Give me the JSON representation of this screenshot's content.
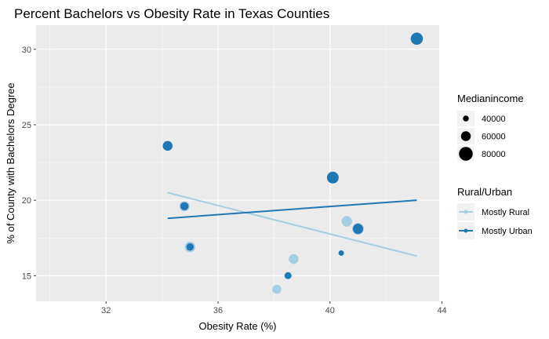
{
  "chart_data": {
    "type": "scatter",
    "title": "Percent Bachelors vs Obesity Rate in Texas Counties",
    "xlabel": "Obesity Rate (%)",
    "ylabel": "% of County with Bachelors Degree",
    "xlim": [
      29.5,
      43.9
    ],
    "ylim": [
      13.3,
      31.6
    ],
    "x_ticks": [
      32,
      36,
      40,
      44
    ],
    "y_ticks": [
      15,
      20,
      25,
      30
    ],
    "grid": true,
    "background": "#ebebeb",
    "legend_position": "right",
    "size_legend": {
      "title": "Medianincome",
      "entries": [
        {
          "label": "40000",
          "value": 40000
        },
        {
          "label": "60000",
          "value": 60000
        },
        {
          "label": "80000",
          "value": 80000
        }
      ]
    },
    "color_legend": {
      "title": "Rural/Urban",
      "entries": [
        {
          "label": "Mostly Rural",
          "color": "#a6cee3"
        },
        {
          "label": "Mostly Urban",
          "color": "#1f78b4"
        }
      ]
    },
    "series": [
      {
        "name": "Mostly Rural",
        "color": "#a6cee3",
        "points": [
          {
            "x": 34.8,
            "y": 19.6,
            "income": 62000
          },
          {
            "x": 35.0,
            "y": 16.9,
            "income": 64000
          },
          {
            "x": 38.1,
            "y": 14.1,
            "income": 56000
          },
          {
            "x": 38.5,
            "y": 15.0,
            "income": 50000
          },
          {
            "x": 38.7,
            "y": 16.1,
            "income": 60000
          },
          {
            "x": 40.6,
            "y": 18.6,
            "income": 64000
          },
          {
            "x": 41.0,
            "y": 18.1,
            "income": 70000
          }
        ],
        "trend": {
          "x": [
            34.2,
            43.1
          ],
          "y": [
            20.5,
            16.3
          ]
        }
      },
      {
        "name": "Mostly Urban",
        "color": "#1f78b4",
        "points": [
          {
            "x": 34.2,
            "y": 23.6,
            "income": 60000
          },
          {
            "x": 34.8,
            "y": 19.6,
            "income": 52000
          },
          {
            "x": 35.0,
            "y": 16.9,
            "income": 48000
          },
          {
            "x": 38.5,
            "y": 15.0,
            "income": 44000
          },
          {
            "x": 40.1,
            "y": 21.5,
            "income": 70000
          },
          {
            "x": 40.4,
            "y": 16.5,
            "income": 38000
          },
          {
            "x": 41.0,
            "y": 18.1,
            "income": 62000
          },
          {
            "x": 43.1,
            "y": 30.7,
            "income": 72000
          }
        ],
        "trend": {
          "x": [
            34.2,
            43.1
          ],
          "y": [
            18.8,
            20.0
          ]
        }
      }
    ]
  }
}
